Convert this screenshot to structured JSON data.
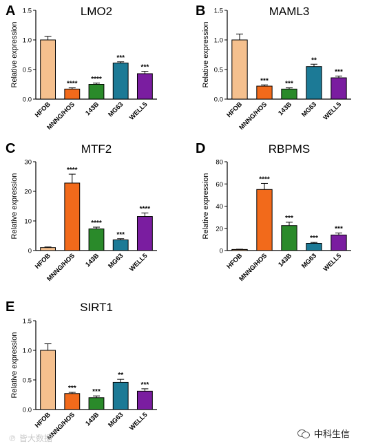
{
  "watermark_left": "皆大数据",
  "brand": {
    "name": "中科生信",
    "icon": "wechat-icon"
  },
  "chart_data": [
    {
      "panel": "A",
      "type": "bar",
      "title": "LMO2",
      "ylabel": "Relative expression",
      "ylim": [
        0,
        1.5
      ],
      "yticks": [
        "0.0",
        "0.5",
        "1.0",
        "1.5"
      ],
      "categories": [
        "HFOB",
        "MNNG/HOS",
        "143B",
        "MG63",
        "WELL5"
      ],
      "colors": [
        "#f5c08e",
        "#f26a1b",
        "#2a8a2a",
        "#1c7a96",
        "#7a1da0"
      ],
      "values": [
        1.0,
        0.17,
        0.25,
        0.61,
        0.43
      ],
      "errors": [
        0.06,
        0.02,
        0.02,
        0.02,
        0.04
      ],
      "significance": [
        "",
        "****",
        "****",
        "***",
        "***"
      ]
    },
    {
      "panel": "B",
      "type": "bar",
      "title": "MAML3",
      "ylabel": "Relative expression",
      "ylim": [
        0,
        1.5
      ],
      "yticks": [
        "0.0",
        "0.5",
        "1.0",
        "1.5"
      ],
      "categories": [
        "HFOB",
        "MNNG/HOS",
        "143B",
        "MG63",
        "WELL5"
      ],
      "colors": [
        "#f5c08e",
        "#f26a1b",
        "#2a8a2a",
        "#1c7a96",
        "#7a1da0"
      ],
      "values": [
        1.0,
        0.22,
        0.17,
        0.55,
        0.36
      ],
      "errors": [
        0.1,
        0.02,
        0.02,
        0.04,
        0.03
      ],
      "significance": [
        "",
        "***",
        "***",
        "**",
        "***"
      ]
    },
    {
      "panel": "C",
      "type": "bar",
      "title": "MTF2",
      "ylabel": "Relative expression",
      "ylim": [
        0,
        30
      ],
      "yticks": [
        "0",
        "10",
        "20",
        "30"
      ],
      "categories": [
        "HFOB",
        "MNNG/HOS",
        "143B",
        "MG63",
        "WELL5"
      ],
      "colors": [
        "#f5c08e",
        "#f26a1b",
        "#2a8a2a",
        "#1c7a96",
        "#7a1da0"
      ],
      "values": [
        1.0,
        22.8,
        7.3,
        3.6,
        11.5
      ],
      "errors": [
        0.2,
        3.0,
        0.6,
        0.4,
        1.2
      ],
      "significance": [
        "",
        "****",
        "****",
        "***",
        "****"
      ]
    },
    {
      "panel": "D",
      "type": "bar",
      "title": "RBPMS",
      "ylabel": "Relative expression",
      "ylim": [
        0,
        80
      ],
      "yticks": [
        "0",
        "20",
        "40",
        "60",
        "80"
      ],
      "categories": [
        "HFOB",
        "MNNG/HOS",
        "143B",
        "MG63",
        "WELL5"
      ],
      "colors": [
        "#f5c08e",
        "#f26a1b",
        "#2a8a2a",
        "#1c7a96",
        "#7a1da0"
      ],
      "values": [
        1.0,
        55.0,
        22.5,
        6.5,
        14.0
      ],
      "errors": [
        0.2,
        5.5,
        3.0,
        0.8,
        1.8
      ],
      "significance": [
        "",
        "****",
        "***",
        "***",
        "***"
      ]
    },
    {
      "panel": "E",
      "type": "bar",
      "title": "SIRT1",
      "ylabel": "Relative expression",
      "ylim": [
        0,
        1.5
      ],
      "yticks": [
        "0.0",
        "0.5",
        "1.0",
        "1.5"
      ],
      "categories": [
        "HFOB",
        "MNNG/HOS",
        "143B",
        "MG63",
        "WELL5"
      ],
      "colors": [
        "#f5c08e",
        "#f26a1b",
        "#2a8a2a",
        "#1c7a96",
        "#7a1da0"
      ],
      "values": [
        1.0,
        0.27,
        0.2,
        0.46,
        0.31
      ],
      "errors": [
        0.11,
        0.02,
        0.03,
        0.05,
        0.04
      ],
      "significance": [
        "",
        "***",
        "***",
        "**",
        "***"
      ]
    }
  ]
}
